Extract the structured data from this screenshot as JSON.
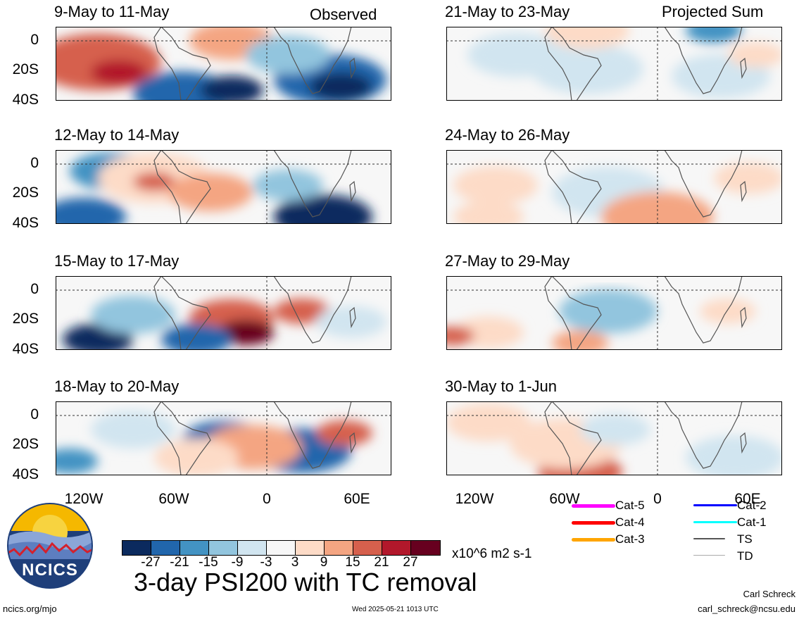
{
  "headers": {
    "left": "Observed",
    "right": "Projected Sum"
  },
  "panels": [
    {
      "title": "9-May to 11-May"
    },
    {
      "title": "21-May to 23-May"
    },
    {
      "title": "12-May to 14-May"
    },
    {
      "title": "24-May to 26-May"
    },
    {
      "title": "15-May to 17-May"
    },
    {
      "title": "27-May to 29-May"
    },
    {
      "title": "18-May to 20-May"
    },
    {
      "title": "30-May to 1-Jun"
    }
  ],
  "y_ticks": [
    "0",
    "20S",
    "40S"
  ],
  "x_ticks": [
    "120W",
    "60W",
    "0",
    "60E"
  ],
  "colorbar": {
    "colors": [
      "#0b2a5e",
      "#2166ac",
      "#4393c3",
      "#92c5de",
      "#d1e5f0",
      "#f7f7f7",
      "#fddbc7",
      "#f4a582",
      "#d6604d",
      "#b2182b",
      "#67001f"
    ],
    "ticks": [
      "-27",
      "-21",
      "-15",
      "-9",
      "-3",
      "3",
      "9",
      "15",
      "21",
      "27"
    ],
    "units": "x10^6 m2 s-1"
  },
  "tc_legend": [
    {
      "label": "Cat-5",
      "color": "#ff00ff"
    },
    {
      "label": "Cat-4",
      "color": "#ff0000"
    },
    {
      "label": "Cat-3",
      "color": "#ffa500"
    },
    {
      "label": "Cat-2",
      "color": "#0000ff"
    },
    {
      "label": "Cat-1",
      "color": "#00ffff"
    },
    {
      "label": "TS",
      "color": "#555555"
    },
    {
      "label": "TD",
      "color": "#aaaaaa"
    }
  ],
  "title": "3-day PSI200 with TC removal",
  "logo_text": "NCICS",
  "footer": {
    "url": "ncics.org/mjo",
    "timestamp": "Wed 2025-05-21 1013 UTC",
    "author": "Carl Schreck",
    "email": "carl_schreck@ncsu.edu"
  }
}
